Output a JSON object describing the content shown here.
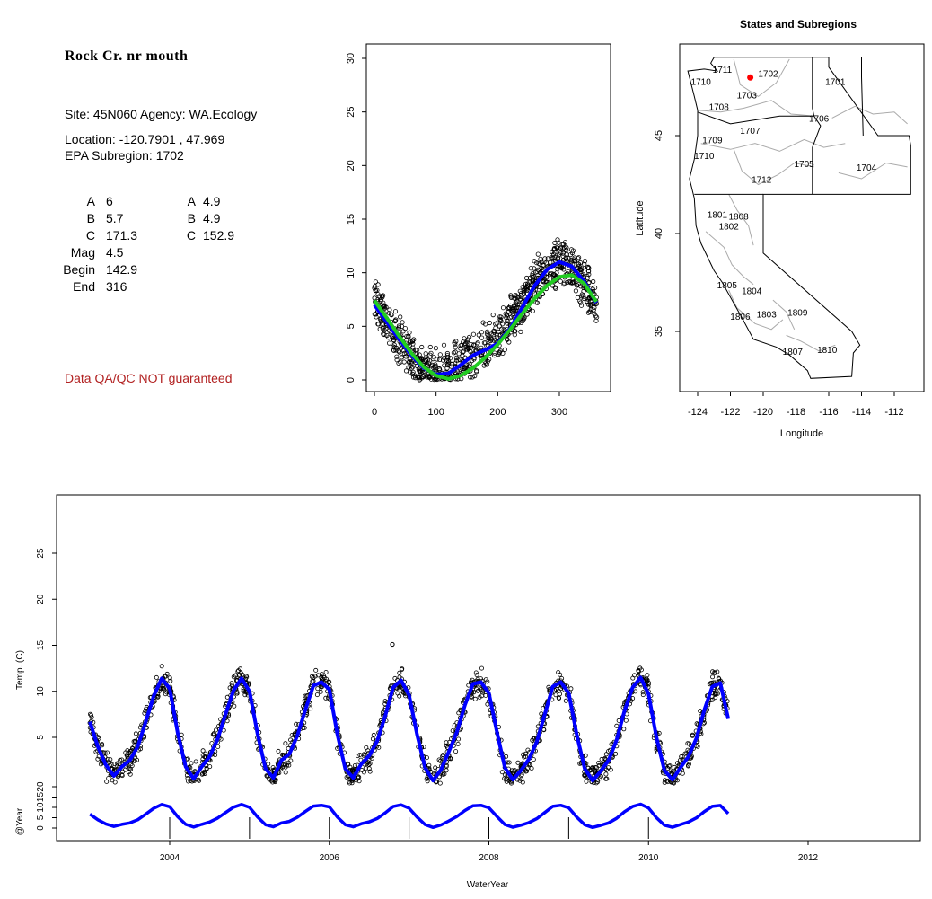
{
  "site": {
    "title": "Rock Cr. nr mouth",
    "site_line": "Site: 45N060      Agency: WA.Ecology",
    "location_line": "Location: -120.7901 , 47.969",
    "subregion_line": "EPA Subregion: 1702",
    "qa_note": "Data QA/QC NOT guaranteed"
  },
  "params": [
    {
      "label": "A",
      "value": "6",
      "label2": "A",
      "value2": "4.9"
    },
    {
      "label": "B",
      "value": "5.7",
      "label2": "B",
      "value2": "4.9"
    },
    {
      "label": "C",
      "value": "171.3",
      "label2": "C",
      "value2": "152.9"
    },
    {
      "label": "Mag",
      "value": "4.5"
    },
    {
      "label": "Begin",
      "value": "142.9"
    },
    {
      "label": "End",
      "value": "316"
    }
  ],
  "colors": {
    "fit_blue": "#0000ff",
    "fit_green": "#22cc22",
    "site_marker": "#ff0000",
    "note_red": "#b22222",
    "region_line": "#aaaaaa"
  },
  "chart_data": [
    {
      "type": "scatter",
      "title": "",
      "xlabel": "",
      "ylabel": "",
      "xlim": [
        0,
        365
      ],
      "ylim": [
        0,
        30
      ],
      "x_ticks": [
        0,
        100,
        200,
        300
      ],
      "y_ticks": [
        0,
        5,
        10,
        15,
        20,
        25,
        30
      ],
      "points_description": "daily water temperature vs day of water year (all years)",
      "series": [
        {
          "style": "points",
          "x": [
            0,
            15,
            30,
            45,
            60,
            75,
            90,
            105,
            120,
            135,
            150,
            165,
            180,
            195,
            210,
            225,
            240,
            255,
            270,
            285,
            300,
            315,
            330,
            345,
            360
          ],
          "y": [
            7.2,
            6.0,
            4.6,
            3.2,
            2.0,
            1.2,
            0.7,
            0.6,
            1.0,
            1.6,
            2.2,
            2.7,
            3.2,
            4.0,
            4.8,
            5.8,
            7.0,
            8.3,
            9.6,
            10.6,
            11.0,
            10.6,
            9.8,
            8.6,
            7.0
          ]
        },
        {
          "name": "",
          "style": "line",
          "color": "#0000ff",
          "x": [
            0,
            20,
            40,
            60,
            80,
            100,
            120,
            140,
            160,
            180,
            200,
            220,
            240,
            260,
            280,
            300,
            320,
            340,
            360
          ],
          "y": [
            7.0,
            5.4,
            3.8,
            2.3,
            1.1,
            0.5,
            0.6,
            1.4,
            2.3,
            2.8,
            3.4,
            4.8,
            6.8,
            8.8,
            10.3,
            11.0,
            10.6,
            9.2,
            7.2
          ]
        },
        {
          "name": "",
          "style": "line",
          "color": "#22cc22",
          "x": [
            0,
            20,
            40,
            60,
            80,
            100,
            120,
            140,
            160,
            180,
            200,
            220,
            240,
            260,
            280,
            300,
            320,
            340,
            360
          ],
          "y": [
            7.4,
            5.8,
            4.1,
            2.5,
            1.2,
            0.4,
            0.1,
            0.4,
            1.1,
            2.1,
            3.3,
            4.7,
            6.2,
            7.6,
            8.8,
            9.6,
            9.8,
            9.0,
            7.3
          ]
        }
      ]
    },
    {
      "type": "map",
      "title": "States and Subregions",
      "xlabel": "Longitude",
      "ylabel": "Latitude",
      "xlim": [
        -125,
        -111
      ],
      "ylim": [
        32.5,
        49.5
      ],
      "x_ticks": [
        -124,
        -122,
        -120,
        -118,
        -116,
        -114,
        -112
      ],
      "y_ticks": [
        35,
        40,
        45
      ],
      "site": {
        "lon": -120.7901,
        "lat": 47.969
      },
      "regions": [
        {
          "label": "1711",
          "lon": -122.5,
          "lat": 48.2
        },
        {
          "label": "1710",
          "lon": -123.8,
          "lat": 47.6
        },
        {
          "label": "1702",
          "lon": -119.7,
          "lat": 48.0
        },
        {
          "label": "1701",
          "lon": -115.6,
          "lat": 47.6
        },
        {
          "label": "1703",
          "lon": -121.0,
          "lat": 46.9
        },
        {
          "label": "1708",
          "lon": -122.7,
          "lat": 46.3
        },
        {
          "label": "1706",
          "lon": -116.6,
          "lat": 45.7
        },
        {
          "label": "1707",
          "lon": -120.8,
          "lat": 45.1
        },
        {
          "label": "1709",
          "lon": -123.1,
          "lat": 44.6
        },
        {
          "label": "1710",
          "lon": -123.6,
          "lat": 43.8
        },
        {
          "label": "1705",
          "lon": -117.5,
          "lat": 43.4
        },
        {
          "label": "1704",
          "lon": -113.7,
          "lat": 43.2
        },
        {
          "label": "1712",
          "lon": -120.1,
          "lat": 42.6
        },
        {
          "label": "1801",
          "lon": -122.8,
          "lat": 40.8
        },
        {
          "label": "1808",
          "lon": -121.5,
          "lat": 40.7
        },
        {
          "label": "1802",
          "lon": -122.1,
          "lat": 40.2
        },
        {
          "label": "1805",
          "lon": -122.2,
          "lat": 37.2
        },
        {
          "label": "1804",
          "lon": -120.7,
          "lat": 36.9
        },
        {
          "label": "1806",
          "lon": -121.4,
          "lat": 35.6
        },
        {
          "label": "1803",
          "lon": -119.8,
          "lat": 35.7
        },
        {
          "label": "1809",
          "lon": -117.9,
          "lat": 35.8
        },
        {
          "label": "1807",
          "lon": -118.2,
          "lat": 33.8
        },
        {
          "label": "1810",
          "lon": -116.1,
          "lat": 33.9
        }
      ]
    },
    {
      "type": "scatter",
      "title": "",
      "xlabel": "WaterYear",
      "ylabel": "Temp. (C)",
      "ylabel2": "@Year",
      "xlim": [
        2002.5,
        2013.3
      ],
      "ylim": [
        -2.6,
        29.6
      ],
      "x_ticks": [
        2004,
        2006,
        2008,
        2010,
        2012
      ],
      "y_ticks": [
        5,
        10,
        15,
        20,
        25
      ],
      "y2_ticks": [
        0,
        5,
        10,
        15,
        20
      ],
      "outlier": {
        "x": 2006.79,
        "y": 15.1
      },
      "series": [
        {
          "name": "",
          "style": "points+line",
          "color": "#0000ff",
          "x": [
            2003.0,
            2003.1,
            2003.2,
            2003.3,
            2003.4,
            2003.5,
            2003.6,
            2003.7,
            2003.8,
            2003.9,
            2004.0,
            2004.1,
            2004.2,
            2004.3,
            2004.4,
            2004.5,
            2004.6,
            2004.7,
            2004.8,
            2004.9,
            2005.0,
            2005.1,
            2005.2,
            2005.3,
            2005.4,
            2005.5,
            2005.6,
            2005.7,
            2005.8,
            2005.9,
            2006.0,
            2006.1,
            2006.2,
            2006.3,
            2006.4,
            2006.5,
            2006.6,
            2006.7,
            2006.8,
            2006.9,
            2007.0,
            2007.1,
            2007.2,
            2007.3,
            2007.4,
            2007.5,
            2007.6,
            2007.7,
            2007.8,
            2007.9,
            2008.0,
            2008.1,
            2008.2,
            2008.3,
            2008.4,
            2008.5,
            2008.6,
            2008.7,
            2008.8,
            2008.9,
            2009.0,
            2009.1,
            2009.2,
            2009.3,
            2009.4,
            2009.5,
            2009.6,
            2009.7,
            2009.8,
            2009.9,
            2010.0,
            2010.1,
            2010.2,
            2010.3,
            2010.4,
            2010.5,
            2010.6,
            2010.7,
            2010.8,
            2010.9,
            2011.0
          ],
          "y": [
            6.7,
            4.0,
            2.0,
            0.8,
            1.8,
            2.5,
            4.0,
            6.7,
            9.5,
            11.4,
            10.3,
            5.5,
            1.8,
            0.5,
            1.8,
            2.9,
            4.8,
            7.5,
            10.1,
            11.4,
            10.0,
            5.4,
            1.6,
            0.6,
            2.5,
            3.2,
            5.2,
            8.0,
            10.6,
            11.0,
            10.2,
            5.4,
            1.6,
            0.6,
            2.1,
            3.0,
            4.6,
            7.3,
            10.4,
            11.2,
            9.6,
            5.3,
            1.7,
            0.3,
            1.5,
            3.5,
            5.6,
            8.5,
            10.8,
            11.0,
            9.8,
            5.6,
            1.7,
            0.4,
            1.4,
            2.6,
            4.5,
            7.5,
            10.5,
            11.0,
            9.8,
            5.3,
            1.6,
            0.3,
            1.3,
            2.5,
            4.7,
            7.9,
            10.4,
            11.5,
            9.7,
            5.0,
            1.4,
            0.4,
            1.7,
            2.9,
            4.9,
            8.0,
            10.5,
            10.9,
            7.0
          ]
        }
      ]
    }
  ]
}
